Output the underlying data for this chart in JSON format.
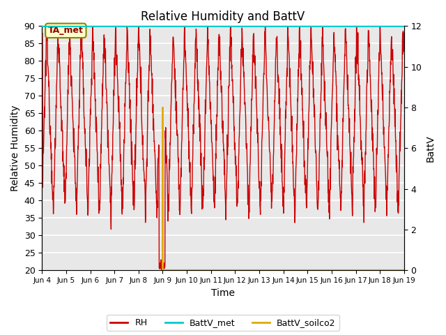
{
  "title": "Relative Humidity and BattV",
  "ylabel_left": "Relative Humidity",
  "ylabel_right": "BattV",
  "xlabel": "Time",
  "ylim_left": [
    20,
    90
  ],
  "ylim_right": [
    0,
    12
  ],
  "plot_bg_color": "#e8e8e8",
  "fig_bg_color": "#ffffff",
  "rh_color": "#cc0000",
  "battv_met_color": "#00cccc",
  "battv_soilco2_color": "#ddaa00",
  "annotation_text": "TA_met",
  "x_tick_labels": [
    "Jun 4",
    "Jun 5",
    "Jun 6",
    "Jun 7",
    "Jun 8",
    "Jun 9",
    "Jun 10",
    "Jun 11",
    "Jun 12",
    "Jun 13",
    "Jun 14",
    "Jun 15",
    "Jun 16",
    "Jun 17",
    "Jun 18",
    "Jun 19"
  ],
  "legend_labels": [
    "RH",
    "BattV_met",
    "BattV_soilco2"
  ],
  "rh_seed": 12345,
  "n_days": 15
}
